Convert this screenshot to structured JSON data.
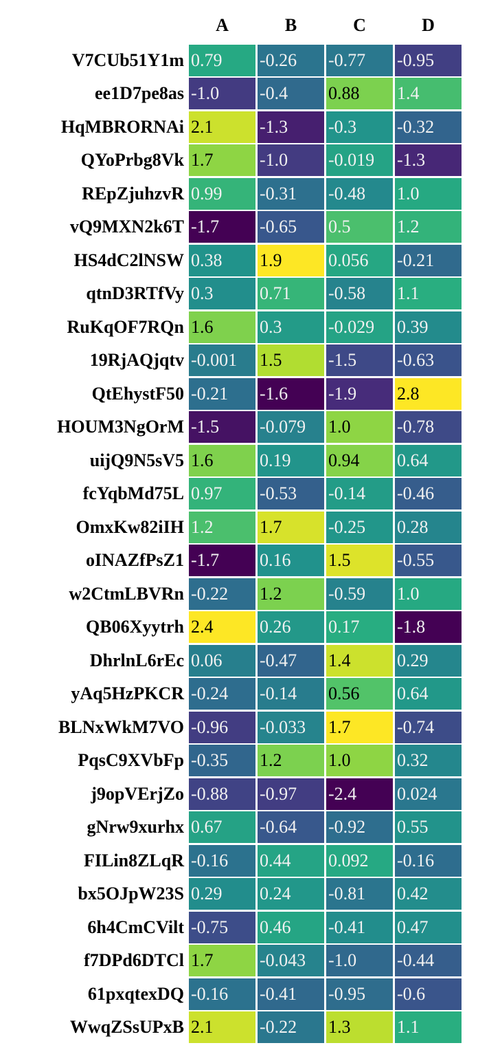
{
  "table": {
    "columns": [
      "A",
      "B",
      "C",
      "D"
    ],
    "rows": [
      {
        "label": "V7CUb51Y1m",
        "values": [
          "0.79",
          "-0.26",
          "-0.77",
          "-0.95"
        ]
      },
      {
        "label": "ee1D7pe8as",
        "values": [
          "-1.0",
          "-0.4",
          "0.88",
          "1.4"
        ]
      },
      {
        "label": "HqMBRORNAi",
        "values": [
          "2.1",
          "-1.3",
          "-0.3",
          "-0.32"
        ]
      },
      {
        "label": "QYoPrbg8Vk",
        "values": [
          "1.7",
          "-1.0",
          "-0.019",
          "-1.3"
        ]
      },
      {
        "label": "REpZjuhzvR",
        "values": [
          "0.99",
          "-0.31",
          "-0.48",
          "1.0"
        ]
      },
      {
        "label": "vQ9MXN2k6T",
        "values": [
          "-1.7",
          "-0.65",
          "0.5",
          "1.2"
        ]
      },
      {
        "label": "HS4dC2lNSW",
        "values": [
          "0.38",
          "1.9",
          "0.056",
          "-0.21"
        ]
      },
      {
        "label": "qtnD3RTfVy",
        "values": [
          "0.3",
          "0.71",
          "-0.58",
          "1.1"
        ]
      },
      {
        "label": "RuKqOF7RQn",
        "values": [
          "1.6",
          "0.3",
          "-0.029",
          "0.39"
        ]
      },
      {
        "label": "19RjAQjqtv",
        "values": [
          "-0.001",
          "1.5",
          "-1.5",
          "-0.63"
        ]
      },
      {
        "label": "QtEhystF50",
        "values": [
          "-0.21",
          "-1.6",
          "-1.9",
          "2.8"
        ]
      },
      {
        "label": "HOUM3NgOrM",
        "values": [
          "-1.5",
          "-0.079",
          "1.0",
          "-0.78"
        ]
      },
      {
        "label": "uijQ9N5sV5",
        "values": [
          "1.6",
          "0.19",
          "0.94",
          "0.64"
        ]
      },
      {
        "label": "fcYqbMd75L",
        "values": [
          "0.97",
          "-0.53",
          "-0.14",
          "-0.46"
        ]
      },
      {
        "label": "OmxKw82iIH",
        "values": [
          "1.2",
          "1.7",
          "-0.25",
          "0.28"
        ]
      },
      {
        "label": "oINAZfPsZ1",
        "values": [
          "-1.7",
          "0.16",
          "1.5",
          "-0.55"
        ]
      },
      {
        "label": "w2CtmLBVRn",
        "values": [
          "-0.22",
          "1.2",
          "-0.59",
          "1.0"
        ]
      },
      {
        "label": "QB06Xyytrh",
        "values": [
          "2.4",
          "0.26",
          "0.17",
          "-1.8"
        ]
      },
      {
        "label": "DhrlnL6rEc",
        "values": [
          "0.06",
          "-0.47",
          "1.4",
          "0.29"
        ]
      },
      {
        "label": "yAq5HzPKCR",
        "values": [
          "-0.24",
          "-0.14",
          "0.56",
          "0.64"
        ]
      },
      {
        "label": "BLNxWkM7VO",
        "values": [
          "-0.96",
          "-0.033",
          "1.7",
          "-0.74"
        ]
      },
      {
        "label": "PqsC9XVbFp",
        "values": [
          "-0.35",
          "1.2",
          "1.0",
          "0.32"
        ]
      },
      {
        "label": "j9opVErjZo",
        "values": [
          "-0.88",
          "-0.97",
          "-2.4",
          "0.024"
        ]
      },
      {
        "label": "gNrw9xurhx",
        "values": [
          "0.67",
          "-0.64",
          "-0.92",
          "0.55"
        ]
      },
      {
        "label": "FILin8ZLqR",
        "values": [
          "-0.16",
          "0.44",
          "0.092",
          "-0.16"
        ]
      },
      {
        "label": "bx5OJpW23S",
        "values": [
          "0.29",
          "0.24",
          "-0.81",
          "0.42"
        ]
      },
      {
        "label": "6h4CmCVilt",
        "values": [
          "-0.75",
          "0.46",
          "-0.41",
          "0.47"
        ]
      },
      {
        "label": "f7DPd6DTCl",
        "values": [
          "1.7",
          "-0.043",
          "-1.0",
          "-0.44"
        ]
      },
      {
        "label": "61pxqtexDQ",
        "values": [
          "-0.16",
          "-0.41",
          "-0.95",
          "-0.6"
        ]
      },
      {
        "label": "WwqZSsUPxB",
        "values": [
          "2.1",
          "-0.22",
          "1.3",
          "1.1"
        ]
      }
    ]
  }
}
